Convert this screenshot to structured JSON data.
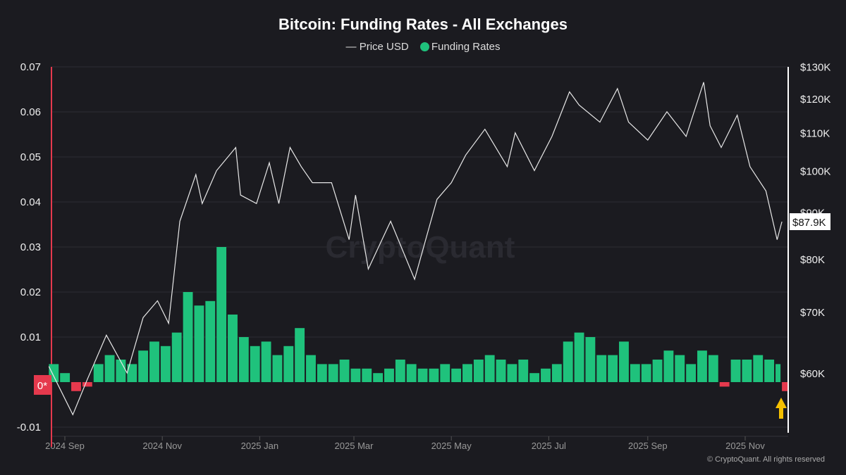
{
  "chart_data": {
    "type": "bar+line",
    "title": "Bitcoin: Funding Rates - All Exchanges",
    "legend": [
      "Price USD",
      "Funding Rates"
    ],
    "legend_placement": "top-center",
    "colors": {
      "positive": "#1fc27c",
      "negative": "#e5394d",
      "price": "#e8e8e8",
      "arrow": "#f5c000",
      "background": "#1b1b20"
    },
    "left_axis": {
      "ticks": [
        "0.07",
        "0.06",
        "0.05",
        "0.04",
        "0.03",
        "0.02",
        "0.01",
        "-0.01"
      ],
      "tick_values": [
        0.07,
        0.06,
        0.05,
        0.04,
        0.03,
        0.02,
        0.01,
        -0.01
      ],
      "range": [
        -0.0097,
        0.07
      ],
      "zero_label": "0*"
    },
    "right_axis": {
      "scale": "log",
      "ticks": [
        "$130K",
        "$120K",
        "$110K",
        "$100K",
        "$90K",
        "$80K",
        "$70K",
        "$60K"
      ],
      "tick_values": [
        130000,
        120000,
        110000,
        100000,
        90000,
        80000,
        70000,
        60000
      ],
      "last_price_label": "$87.9K"
    },
    "x_ticks": [
      "2024 Sep",
      "2024 Nov",
      "2025 Jan",
      "2025 Mar",
      "2025 May",
      "2025 Jul",
      "2025 Sep",
      "2025 Nov"
    ],
    "x_tick_dates": [
      "2024-09-01",
      "2024-11-01",
      "2025-01-01",
      "2025-03-01",
      "2025-05-01",
      "2025-07-01",
      "2025-09-01",
      "2025-11-01"
    ],
    "grid": true,
    "watermark": "CryptoQuant",
    "funding": {
      "x": [
        "2024-08-22",
        "2024-08-29",
        "2024-09-05",
        "2024-09-12",
        "2024-09-19",
        "2024-09-26",
        "2024-10-03",
        "2024-10-10",
        "2024-10-17",
        "2024-10-24",
        "2024-10-31",
        "2024-11-07",
        "2024-11-14",
        "2024-11-21",
        "2024-11-28",
        "2024-12-05",
        "2024-12-12",
        "2024-12-19",
        "2024-12-26",
        "2025-01-02",
        "2025-01-09",
        "2025-01-16",
        "2025-01-23",
        "2025-01-30",
        "2025-02-06",
        "2025-02-13",
        "2025-02-20",
        "2025-02-27",
        "2025-03-06",
        "2025-03-13",
        "2025-03-20",
        "2025-03-27",
        "2025-04-03",
        "2025-04-10",
        "2025-04-17",
        "2025-04-24",
        "2025-05-01",
        "2025-05-08",
        "2025-05-15",
        "2025-05-22",
        "2025-05-29",
        "2025-06-05",
        "2025-06-12",
        "2025-06-19",
        "2025-06-26",
        "2025-07-03",
        "2025-07-10",
        "2025-07-17",
        "2025-07-24",
        "2025-07-31",
        "2025-08-07",
        "2025-08-14",
        "2025-08-21",
        "2025-08-28",
        "2025-09-04",
        "2025-09-11",
        "2025-09-18",
        "2025-09-25",
        "2025-10-02",
        "2025-10-09",
        "2025-10-16",
        "2025-10-23",
        "2025-10-30",
        "2025-11-06",
        "2025-11-13",
        "2025-11-20",
        "2025-11-24"
      ],
      "values": [
        0.004,
        0.002,
        -0.002,
        -0.001,
        0.004,
        0.006,
        0.005,
        0.004,
        0.007,
        0.009,
        0.008,
        0.011,
        0.02,
        0.017,
        0.018,
        0.03,
        0.015,
        0.01,
        0.008,
        0.009,
        0.006,
        0.008,
        0.012,
        0.006,
        0.004,
        0.004,
        0.005,
        0.003,
        0.003,
        0.002,
        0.003,
        0.005,
        0.004,
        0.003,
        0.003,
        0.004,
        0.003,
        0.004,
        0.005,
        0.006,
        0.005,
        0.004,
        0.005,
        0.002,
        0.003,
        0.004,
        0.009,
        0.011,
        0.01,
        0.006,
        0.006,
        0.009,
        0.004,
        0.004,
        0.005,
        0.007,
        0.006,
        0.004,
        0.007,
        0.006,
        -0.001,
        0.005,
        0.005,
        0.006,
        0.005,
        0.004,
        -0.002
      ]
    },
    "price": {
      "x": [
        "2024-08-22",
        "2024-09-06",
        "2024-09-15",
        "2024-09-27",
        "2024-10-10",
        "2024-10-20",
        "2024-10-29",
        "2024-11-05",
        "2024-11-12",
        "2024-11-22",
        "2024-11-26",
        "2024-12-05",
        "2024-12-17",
        "2024-12-20",
        "2024-12-30",
        "2025-01-07",
        "2025-01-13",
        "2025-01-20",
        "2025-01-27",
        "2025-02-03",
        "2025-02-15",
        "2025-02-26",
        "2025-03-02",
        "2025-03-10",
        "2025-03-24",
        "2025-04-08",
        "2025-04-22",
        "2025-05-01",
        "2025-05-10",
        "2025-05-22",
        "2025-06-05",
        "2025-06-10",
        "2025-06-22",
        "2025-07-03",
        "2025-07-14",
        "2025-07-20",
        "2025-08-02",
        "2025-08-13",
        "2025-08-20",
        "2025-09-01",
        "2025-09-13",
        "2025-09-25",
        "2025-10-06",
        "2025-10-10",
        "2025-10-17",
        "2025-10-27",
        "2025-11-04",
        "2025-11-14",
        "2025-11-21",
        "2025-11-24"
      ],
      "values": [
        61000,
        54000,
        59000,
        66000,
        60000,
        69000,
        72000,
        68000,
        88000,
        99000,
        92000,
        100000,
        106000,
        94000,
        92000,
        102000,
        92000,
        106000,
        101000,
        97000,
        97000,
        84000,
        94000,
        78000,
        88000,
        76000,
        93000,
        97000,
        104000,
        111000,
        101000,
        110000,
        100000,
        109000,
        122000,
        118000,
        113000,
        123000,
        113000,
        108000,
        116000,
        109000,
        125000,
        112000,
        106000,
        115000,
        101000,
        95000,
        84000,
        87900
      ]
    }
  },
  "footer": "© CryptoQuant. All rights reserved"
}
